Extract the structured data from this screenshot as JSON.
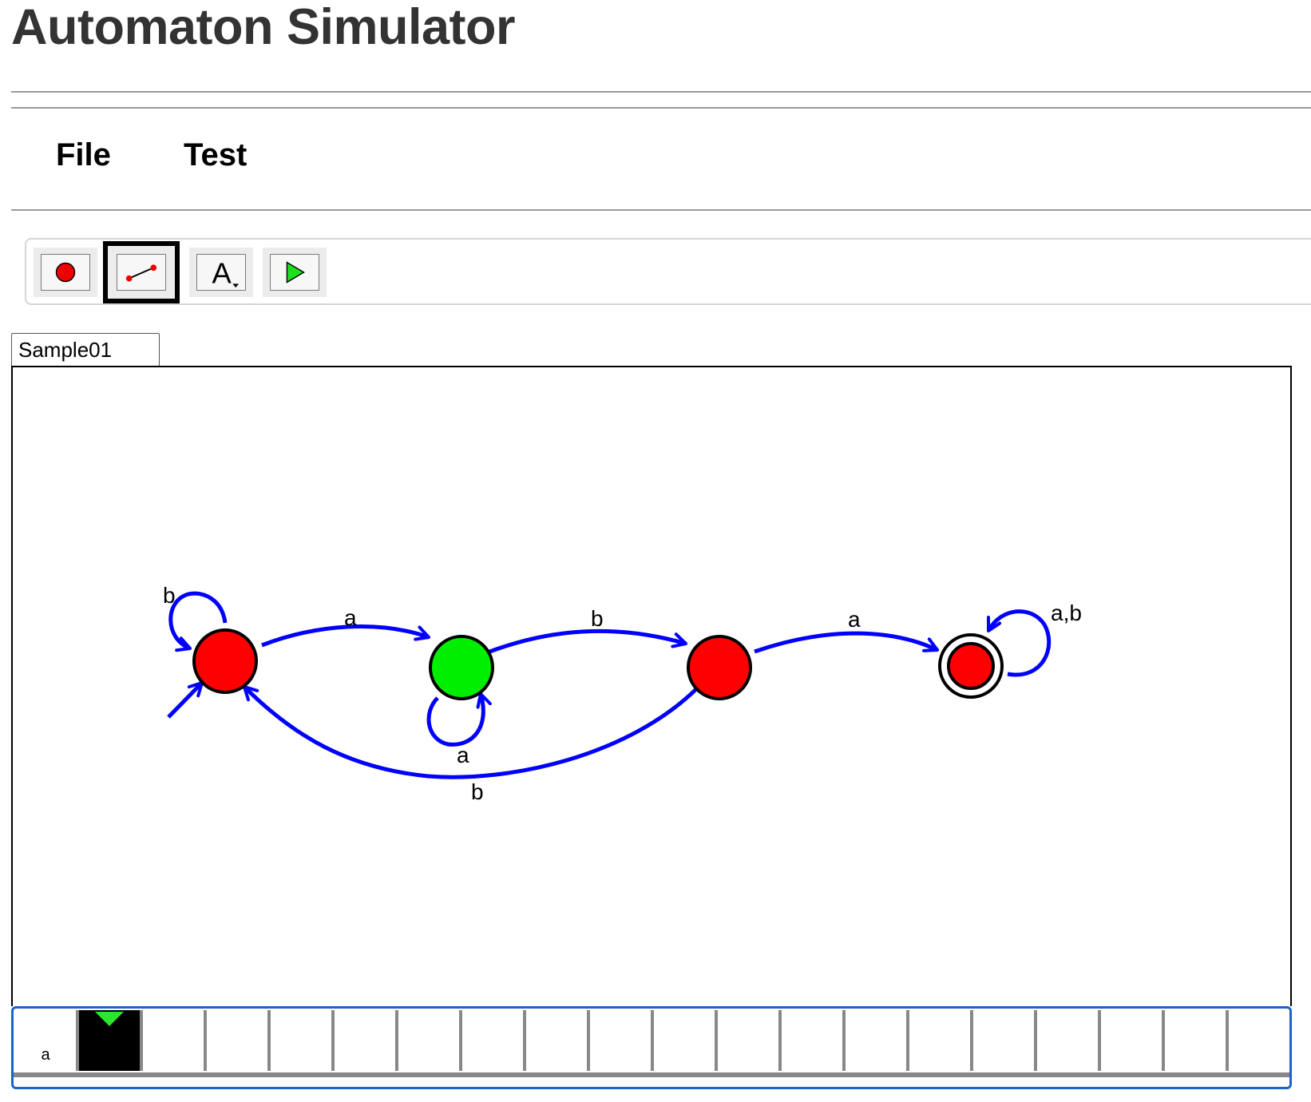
{
  "app": {
    "title": "Automaton Simulator"
  },
  "menu": {
    "items": [
      {
        "label": "File"
      },
      {
        "label": "Test"
      }
    ]
  },
  "toolbar": {
    "tools": [
      {
        "name": "add-state-tool",
        "icon": "red-circle-icon",
        "selected": false
      },
      {
        "name": "add-transition-tool",
        "icon": "line-edge-icon",
        "selected": true
      },
      {
        "name": "edit-label-tool",
        "icon": "text-label-icon",
        "selected": false
      },
      {
        "name": "run-tool",
        "icon": "play-icon",
        "selected": false
      }
    ]
  },
  "automaton": {
    "name": "Sample01",
    "colors": {
      "state": "#ff0000",
      "active_state": "#00ee00",
      "edge": "#0000ff"
    },
    "states": [
      {
        "id": "q0",
        "initial": true,
        "accepting": false,
        "active": false
      },
      {
        "id": "q1",
        "initial": false,
        "accepting": false,
        "active": true
      },
      {
        "id": "q2",
        "initial": false,
        "accepting": false,
        "active": false
      },
      {
        "id": "q3",
        "initial": false,
        "accepting": true,
        "active": false
      }
    ],
    "transitions": [
      {
        "from": "q0",
        "to": "q0",
        "label": "b"
      },
      {
        "from": "q0",
        "to": "q1",
        "label": "a"
      },
      {
        "from": "q1",
        "to": "q1",
        "label": "a"
      },
      {
        "from": "q1",
        "to": "q2",
        "label": "b"
      },
      {
        "from": "q2",
        "to": "q3",
        "label": "a"
      },
      {
        "from": "q2",
        "to": "q0",
        "label": "b"
      },
      {
        "from": "q3",
        "to": "q3",
        "label": "a,b"
      }
    ]
  },
  "tape": {
    "cells": [
      "a",
      "",
      "",
      "",
      "",
      "",
      "",
      "",
      "",
      "",
      "",
      "",
      "",
      "",
      "",
      "",
      "",
      "",
      "",
      "",
      ""
    ],
    "head_index": 1,
    "head_color": "#2ee52e"
  }
}
